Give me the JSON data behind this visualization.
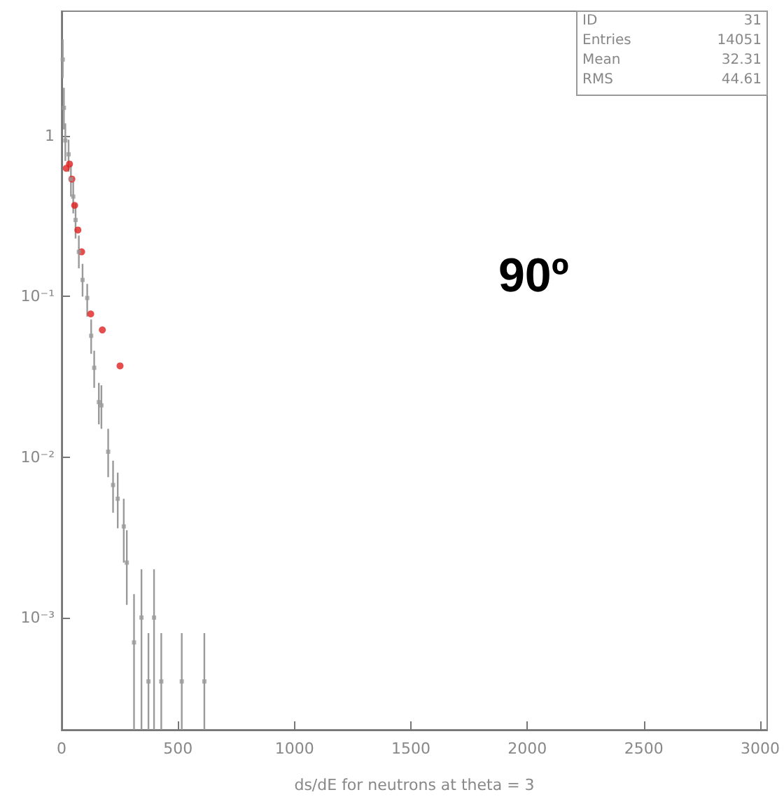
{
  "chart_data": {
    "type": "scatter",
    "xlabel": "ds/dE for neutrons at theta = 3",
    "annotations": [
      "ID 31",
      "Entries 14051",
      "Mean 32.31",
      "RMS 44.61",
      "90º"
    ],
    "log": "y",
    "xlim": [
      0,
      3030
    ],
    "xticks": [
      0,
      500,
      1000,
      1500,
      2000,
      2500,
      3000
    ],
    "ylim": [
      0.0002,
      6
    ],
    "yticks": [
      {
        "value": 0.001,
        "label": "10⁻³"
      },
      {
        "value": 0.01,
        "label": "10⁻²"
      },
      {
        "value": 0.1,
        "label": "10⁻¹"
      },
      1
    ],
    "series": [
      {
        "color": "#9a9a9a",
        "marker": "square",
        "x": [
          5,
          10,
          16,
          30,
          40,
          50,
          60,
          74,
          90,
          110,
          127,
          140,
          160,
          171,
          200,
          221,
          241,
          267,
          280,
          311,
          343,
          373,
          397,
          428,
          516,
          613
        ],
        "values": [
          3.0,
          1.5,
          0.94,
          0.77,
          0.54,
          0.42,
          0.3,
          0.19,
          0.127,
          0.098,
          0.057,
          0.036,
          0.022,
          0.021,
          0.0108,
          0.0067,
          0.0055,
          0.0037,
          0.0022,
          0.0007,
          0.001,
          0.0004,
          0.001,
          0.0004,
          0.0004,
          0.0004
        ],
        "errors": [
          [
            2.3,
            4.0
          ],
          [
            1.1,
            2.0
          ],
          [
            0.7,
            1.2
          ],
          [
            0.6,
            0.95
          ],
          [
            0.42,
            0.66
          ],
          [
            0.33,
            0.52
          ],
          [
            0.23,
            0.38
          ],
          [
            0.15,
            0.24
          ],
          [
            0.1,
            0.16
          ],
          [
            0.075,
            0.12
          ],
          [
            0.044,
            0.072
          ],
          [
            0.027,
            0.046
          ],
          [
            0.016,
            0.029
          ],
          [
            0.015,
            0.028
          ],
          [
            0.0075,
            0.015
          ],
          [
            0.0045,
            0.0095
          ],
          [
            0.0036,
            0.008
          ],
          [
            0.0022,
            0.0055
          ],
          [
            0.0012,
            0.0035
          ],
          [
            0.0002,
            0.0014
          ],
          [
            0.0002,
            0.002
          ],
          [
            0.0002,
            0.0008
          ],
          [
            0.0002,
            0.002
          ],
          [
            0.0002,
            0.0008
          ],
          [
            0.0002,
            0.0008
          ],
          [
            0.0002,
            0.0008
          ]
        ]
      },
      {
        "color": "#e02020",
        "marker": "circle",
        "x": [
          20,
          34,
          44,
          56,
          70,
          86,
          125,
          175,
          251
        ],
        "values": [
          0.63,
          0.67,
          0.54,
          0.37,
          0.26,
          0.19,
          0.078,
          0.062,
          0.037
        ]
      }
    ]
  }
}
